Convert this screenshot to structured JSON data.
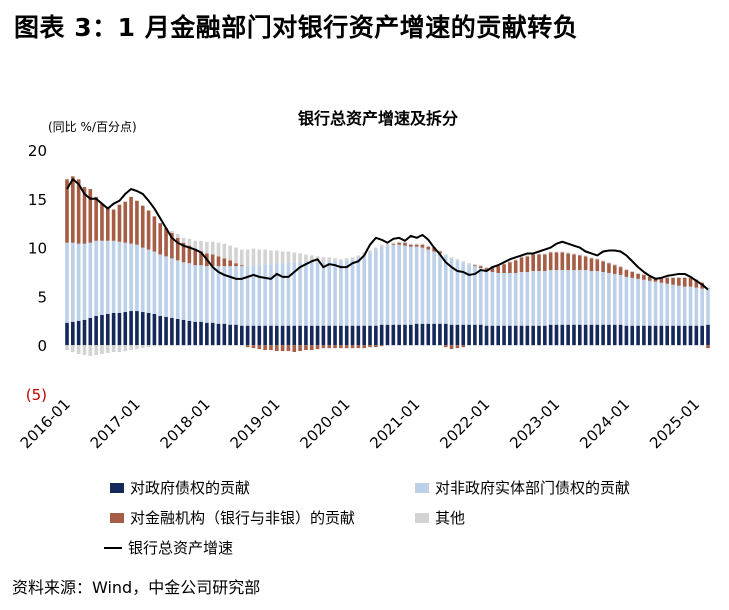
{
  "figure_title": "图表 3：1 月金融部门对银行资产增速的贡献转负",
  "source_note": "资料来源：Wind，中金公司研究部",
  "colors": {
    "government": "#14285a",
    "nonfinancial": "#bdd0e9",
    "financial": "#a65d45",
    "other": "#d3d3d3",
    "total_line": "#000000",
    "negative_label": "#c00000"
  },
  "chart_data": {
    "type": "bar",
    "stacked": true,
    "title": "银行总资产增速及拆分",
    "ylabel": "(同比 %/百分点)",
    "ylim": [
      -5,
      20
    ],
    "yticks": [
      -5,
      0,
      5,
      10,
      15,
      20
    ],
    "ytick_labels": [
      "(5)",
      "0",
      "5",
      "10",
      "15",
      "20"
    ],
    "xtick_labels": [
      "2016-01",
      "2017-01",
      "2018-01",
      "2019-01",
      "2020-01",
      "2021-01",
      "2022-01",
      "2023-01",
      "2024-01",
      "2025-01"
    ],
    "start_month": "2016-01",
    "end_month": "2025-01",
    "grid": false,
    "legend_position": "bottom",
    "series": [
      {
        "name": "对政府债权的贡献",
        "key": "government",
        "values": [
          2.3,
          2.4,
          2.5,
          2.6,
          2.8,
          3.0,
          3.1,
          3.2,
          3.3,
          3.3,
          3.4,
          3.5,
          3.5,
          3.4,
          3.3,
          3.2,
          3.0,
          2.9,
          2.8,
          2.7,
          2.6,
          2.5,
          2.4,
          2.4,
          2.3,
          2.3,
          2.2,
          2.2,
          2.1,
          2.1,
          2.0,
          2.0,
          2.0,
          2.0,
          2.0,
          2.0,
          2.0,
          2.0,
          2.0,
          2.0,
          2.0,
          2.0,
          2.0,
          2.0,
          2.0,
          2.0,
          2.0,
          2.0,
          2.0,
          2.0,
          2.0,
          2.0,
          2.0,
          2.0,
          2.1,
          2.1,
          2.1,
          2.1,
          2.1,
          2.1,
          2.2,
          2.2,
          2.2,
          2.2,
          2.2,
          2.2,
          2.1,
          2.1,
          2.1,
          2.1,
          2.1,
          2.1,
          2.0,
          2.0,
          2.0,
          2.0,
          2.0,
          2.0,
          2.0,
          2.0,
          2.0,
          2.0,
          2.0,
          2.1,
          2.1,
          2.1,
          2.1,
          2.1,
          2.1,
          2.1,
          2.1,
          2.1,
          2.1,
          2.1,
          2.1,
          2.1,
          2.0,
          2.0,
          2.0,
          2.0,
          2.0,
          2.0,
          2.0,
          2.0,
          2.0,
          2.0,
          2.0,
          2.0,
          2.0,
          2.0,
          2.1
        ]
      },
      {
        "name": "对非政府实体部门债权的贡献",
        "key": "nonfinancial",
        "values": [
          8.2,
          8.1,
          7.9,
          7.8,
          7.7,
          7.7,
          7.6,
          7.5,
          7.4,
          7.3,
          7.1,
          6.9,
          6.8,
          6.6,
          6.5,
          6.4,
          6.3,
          6.2,
          6.1,
          6.0,
          5.9,
          5.9,
          5.8,
          5.8,
          5.8,
          5.8,
          5.9,
          5.9,
          6.0,
          6.0,
          6.1,
          6.1,
          6.2,
          6.2,
          6.3,
          6.3,
          6.4,
          6.4,
          6.5,
          6.5,
          6.5,
          6.5,
          6.5,
          6.5,
          6.5,
          6.6,
          6.6,
          6.6,
          6.7,
          6.8,
          7.0,
          7.3,
          7.5,
          7.8,
          8.0,
          8.1,
          8.2,
          8.2,
          8.1,
          8.0,
          7.9,
          7.8,
          7.6,
          7.4,
          7.2,
          7.0,
          6.8,
          6.6,
          6.4,
          6.2,
          6.0,
          5.8,
          5.6,
          5.5,
          5.4,
          5.4,
          5.4,
          5.4,
          5.5,
          5.5,
          5.6,
          5.6,
          5.6,
          5.6,
          5.6,
          5.6,
          5.6,
          5.6,
          5.6,
          5.6,
          5.5,
          5.5,
          5.4,
          5.3,
          5.2,
          5.1,
          5.0,
          4.9,
          4.8,
          4.7,
          4.6,
          4.5,
          4.4,
          4.3,
          4.2,
          4.1,
          4.0,
          4.0,
          3.9,
          3.8,
          3.7
        ]
      },
      {
        "name": "对金融机构（银行与非银）的贡献",
        "key": "financial",
        "values": [
          6.5,
          6.8,
          6.6,
          5.8,
          5.5,
          4.5,
          3.8,
          3.4,
          3.2,
          3.8,
          4.2,
          4.8,
          4.5,
          4.3,
          4.0,
          3.6,
          3.2,
          2.9,
          2.6,
          2.3,
          2.0,
          1.8,
          1.6,
          1.4,
          1.3,
          1.2,
          1.0,
          0.8,
          0.6,
          0.3,
          0.1,
          -0.2,
          -0.3,
          -0.4,
          -0.5,
          -0.5,
          -0.6,
          -0.6,
          -0.6,
          -0.7,
          -0.6,
          -0.5,
          -0.5,
          -0.4,
          -0.3,
          -0.3,
          -0.3,
          -0.3,
          -0.3,
          -0.3,
          -0.3,
          -0.3,
          -0.2,
          -0.2,
          -0.1,
          0.0,
          0.1,
          0.2,
          0.3,
          0.2,
          0.2,
          0.3,
          0.3,
          0.4,
          0.2,
          -0.2,
          -0.4,
          -0.3,
          -0.2,
          0.0,
          0.1,
          0.2,
          0.3,
          0.5,
          0.7,
          0.9,
          1.1,
          1.3,
          1.5,
          1.6,
          1.7,
          1.7,
          1.7,
          1.8,
          1.8,
          1.8,
          1.7,
          1.6,
          1.5,
          1.4,
          1.3,
          1.2,
          1.1,
          1.0,
          0.9,
          0.8,
          0.7,
          0.6,
          0.5,
          0.5,
          0.4,
          0.4,
          0.5,
          0.6,
          0.7,
          0.8,
          0.9,
          0.9,
          0.8,
          0.6,
          -0.3
        ]
      },
      {
        "name": "其他",
        "key": "other",
        "values": [
          -0.5,
          -0.7,
          -0.9,
          -1.0,
          -1.1,
          -1.0,
          -0.9,
          -0.8,
          -0.7,
          -0.7,
          -0.6,
          -0.5,
          -0.4,
          -0.3,
          -0.2,
          -0.1,
          -0.1,
          0.0,
          0.2,
          0.4,
          0.5,
          0.7,
          0.9,
          1.1,
          1.2,
          1.3,
          1.4,
          1.5,
          1.5,
          1.6,
          1.6,
          1.7,
          1.7,
          1.6,
          1.5,
          1.4,
          1.3,
          1.2,
          1.1,
          1.0,
          0.9,
          0.8,
          0.7,
          0.6,
          0.5,
          0.4,
          0.3,
          0.2,
          0.2,
          0.2,
          0.2,
          0.2,
          0.2,
          0.2,
          0.2,
          0.2,
          0.1,
          0.1,
          0.1,
          0.1,
          0.1,
          0.1,
          0.1,
          0.1,
          0.1,
          0.1,
          0.1,
          0.1,
          0.1,
          0.1,
          0.1,
          0.1,
          0.1,
          0.1,
          0.1,
          0.1,
          0.1,
          0.1,
          0.1,
          0.1,
          0.1,
          0.1,
          0.1,
          0.1,
          0.1,
          0.1,
          0.1,
          0.1,
          0.1,
          0.1,
          0.1,
          0.1,
          0.1,
          0.1,
          0.1,
          0.1,
          0.1,
          0.1,
          0.1,
          0.1,
          0.1,
          0.1,
          0.1,
          0.1,
          0.1,
          0.1,
          0.1,
          0.1,
          0.1,
          0.1,
          0.1
        ]
      },
      {
        "name": "银行总资产增速",
        "key": "total",
        "type": "line",
        "values": [
          16.0,
          17.0,
          16.5,
          15.5,
          15.0,
          15.0,
          14.5,
          14.0,
          14.5,
          14.8,
          15.5,
          16.0,
          15.8,
          15.5,
          14.8,
          14.0,
          13.0,
          12.0,
          11.0,
          10.5,
          10.2,
          10.0,
          9.8,
          9.5,
          8.8,
          8.0,
          7.5,
          7.2,
          7.0,
          6.8,
          6.8,
          7.0,
          7.2,
          7.0,
          6.9,
          6.8,
          7.3,
          7.0,
          7.0,
          7.5,
          8.0,
          8.3,
          8.6,
          8.8,
          8.0,
          8.3,
          8.2,
          8.0,
          8.0,
          8.4,
          8.6,
          9.2,
          10.3,
          11.0,
          10.8,
          10.5,
          10.9,
          11.0,
          10.7,
          11.2,
          11.0,
          11.3,
          10.8,
          10.0,
          9.3,
          8.5,
          8.0,
          7.6,
          7.5,
          7.2,
          7.3,
          7.7,
          7.6,
          8.0,
          8.2,
          8.5,
          8.8,
          9.0,
          9.2,
          9.4,
          9.4,
          9.6,
          9.8,
          10.0,
          10.4,
          10.6,
          10.4,
          10.2,
          10.0,
          9.6,
          9.4,
          9.2,
          9.6,
          9.7,
          9.7,
          9.6,
          9.2,
          8.6,
          8.0,
          7.5,
          7.1,
          6.8,
          6.9,
          7.1,
          7.2,
          7.3,
          7.3,
          7.0,
          6.6,
          6.2,
          5.7
        ]
      }
    ]
  }
}
